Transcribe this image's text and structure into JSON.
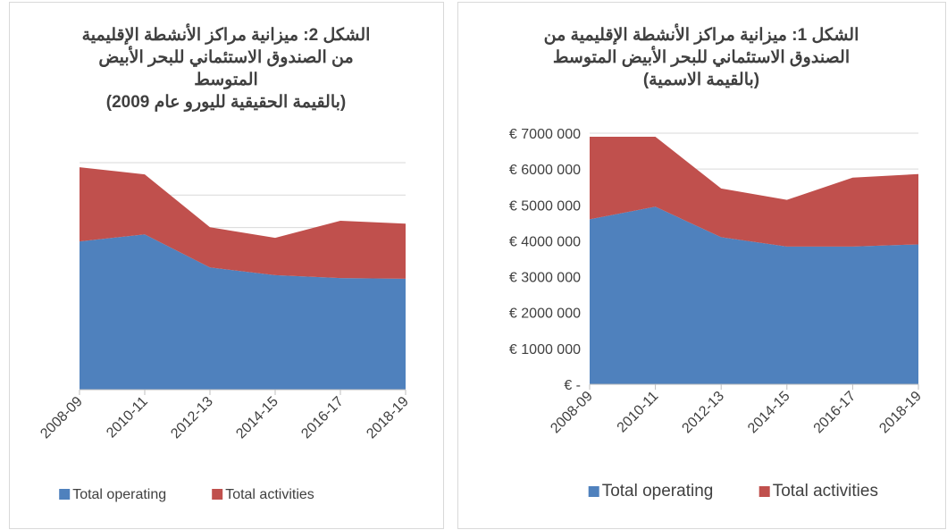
{
  "chart_data": [
    {
      "type": "stacked_area",
      "title_lines": [
        "الشكل 2: ميزانية مراكز الأنشطة الإقليمية",
        "من الصندوق الاستئماني للبحر الأبيض",
        "المتوسط",
        "(بالقيمة الحقيقية لليورو عام 2009)"
      ],
      "categories": [
        "2008-09",
        "2010-11",
        "2012-13",
        "2014-15",
        "2016-17",
        "2018-19"
      ],
      "series": [
        {
          "name": "Total operating",
          "color": "#4f81bd",
          "values": [
            4570000,
            4790000,
            3770000,
            3530000,
            3440000,
            3420000
          ]
        },
        {
          "name": "Total activities",
          "color": "#c0504d",
          "values": [
            2290000,
            1850000,
            1240000,
            1150000,
            1770000,
            1700000
          ]
        }
      ],
      "ylim": [
        0,
        7000000
      ],
      "yticks": [
        0,
        1000000,
        2000000,
        3000000,
        4000000,
        5000000,
        6000000,
        7000000
      ],
      "y_tick_labels": false,
      "grid": true,
      "legend": "bottom"
    },
    {
      "type": "stacked_area",
      "title_lines": [
        "الشكل 1: ميزانية مراكز الأنشطة الإقليمية من",
        "الصندوق الاستئماني للبحر الأبيض المتوسط",
        "(بالقيمة الاسمية)"
      ],
      "categories": [
        "2008-09",
        "2010-11",
        "2012-13",
        "2014-15",
        "2016-17",
        "2018-19"
      ],
      "series": [
        {
          "name": "Total operating",
          "color": "#4f81bd",
          "values": [
            4600000,
            4950000,
            4100000,
            3840000,
            3840000,
            3900000
          ]
        },
        {
          "name": "Total activities",
          "color": "#c0504d",
          "values": [
            2300000,
            1950000,
            1360000,
            1300000,
            1920000,
            1960000
          ]
        }
      ],
      "ylim": [
        0,
        7000000
      ],
      "yticks": [
        {
          "value": 0,
          "label": "€ -"
        },
        {
          "value": 1000000,
          "label": "€ 1000 000"
        },
        {
          "value": 2000000,
          "label": "€ 2000 000"
        },
        {
          "value": 3000000,
          "label": "€ 3000 000"
        },
        {
          "value": 4000000,
          "label": "€ 4000 000"
        },
        {
          "value": 5000000,
          "label": "€ 5000 000"
        },
        {
          "value": 6000000,
          "label": "€ 6000 000"
        },
        {
          "value": 7000000,
          "label": "€ 7000 000"
        }
      ],
      "y_tick_labels": true,
      "grid": true,
      "legend": "bottom"
    }
  ]
}
